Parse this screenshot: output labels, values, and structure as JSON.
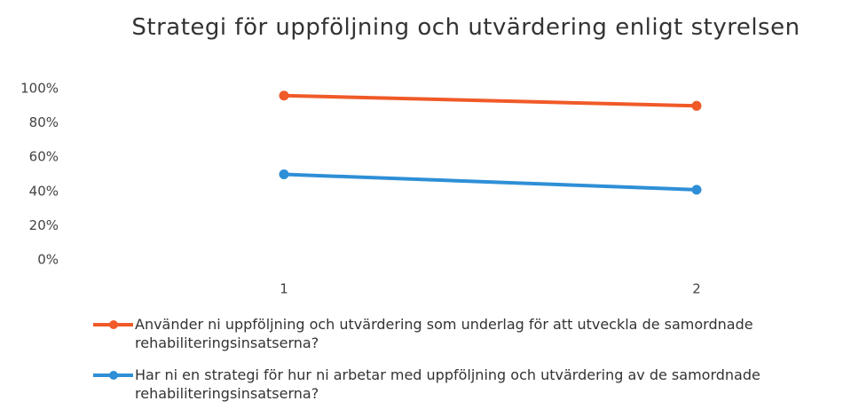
{
  "chart_data": {
    "type": "line",
    "title": "Strategi för uppföljning och utvärdering enligt styrelsen",
    "categories": [
      "1",
      "2"
    ],
    "series": [
      {
        "name": "Använder ni uppföljning och utvärdering som underlag för att utveckla de samordnade rehabiliteringsinsatserna?",
        "color": "#f05a28",
        "values": [
          96,
          90
        ]
      },
      {
        "name": "Har ni en strategi för hur ni arbetar med uppföljning och utvärdering av de samordnade rehabiliteringsinsatserna?",
        "color": "#2e8fd6",
        "values": [
          50,
          41
        ]
      }
    ],
    "ylim": [
      0,
      100
    ],
    "yticks": [
      {
        "value": 0,
        "label": "0%"
      },
      {
        "value": 20,
        "label": "20%"
      },
      {
        "value": 40,
        "label": "40%"
      },
      {
        "value": 60,
        "label": "60%"
      },
      {
        "value": 80,
        "label": "80%"
      },
      {
        "value": 100,
        "label": "100%"
      }
    ],
    "grid": false,
    "legend": "bottom"
  }
}
